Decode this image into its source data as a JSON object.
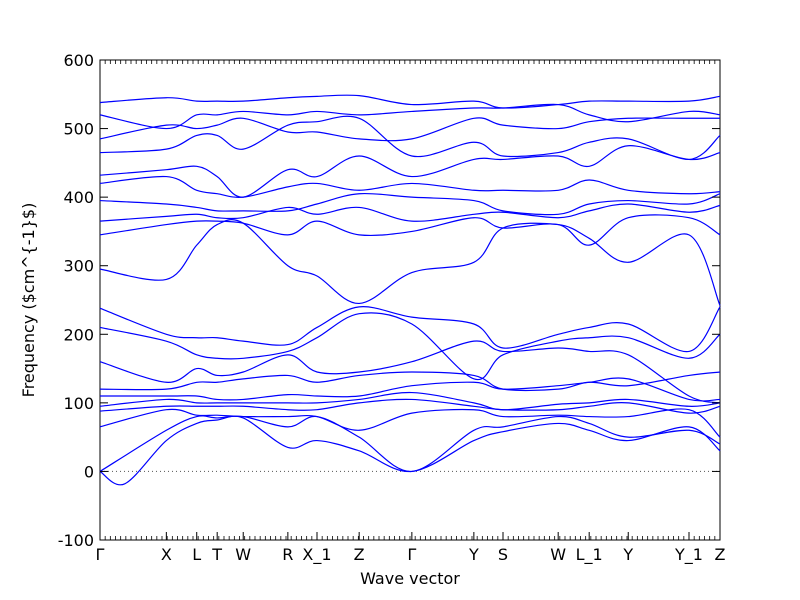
{
  "chart_data": {
    "type": "line",
    "title": "",
    "xlabel": "Wave vector",
    "ylabel": "Frequency ($cm^{-1}$)",
    "ylim": [
      -100,
      600
    ],
    "y_ticks": [
      -100,
      0,
      100,
      200,
      300,
      400,
      500,
      600
    ],
    "x_ticks": [
      {
        "label": "Γ",
        "x": 0.0
      },
      {
        "label": "X",
        "x": 0.107
      },
      {
        "label": "L",
        "x": 0.156
      },
      {
        "label": "T",
        "x": 0.189
      },
      {
        "label": "W",
        "x": 0.231
      },
      {
        "label": "R",
        "x": 0.303
      },
      {
        "label": "X_1",
        "x": 0.35
      },
      {
        "label": "Z",
        "x": 0.418
      },
      {
        "label": "Γ",
        "x": 0.503
      },
      {
        "label": "Y",
        "x": 0.603
      },
      {
        "label": "S",
        "x": 0.65
      },
      {
        "label": "W",
        "x": 0.739
      },
      {
        "label": "L_1",
        "x": 0.789
      },
      {
        "label": "Y",
        "x": 0.852
      },
      {
        "label": "Y_1",
        "x": 0.95
      },
      {
        "label": "Z",
        "x": 1.0
      }
    ],
    "series_color": "#0000ff",
    "zero_line": {
      "y": 0,
      "style": "dotted",
      "color": "#555555"
    },
    "series": [
      {
        "x": [
          0,
          0.04,
          0.107,
          0.156,
          0.189,
          0.231,
          0.303,
          0.35,
          0.418,
          0.503,
          0.603,
          0.65,
          0.739,
          0.789,
          0.852,
          0.95,
          1.0
        ],
        "values": [
          0,
          -18,
          45,
          70,
          75,
          78,
          35,
          45,
          30,
          0,
          45,
          58,
          70,
          60,
          45,
          65,
          30
        ]
      },
      {
        "x": [
          0,
          0.107,
          0.156,
          0.189,
          0.231,
          0.303,
          0.35,
          0.418,
          0.503,
          0.603,
          0.65,
          0.739,
          0.789,
          0.852,
          0.95,
          1.0
        ],
        "values": [
          0,
          60,
          80,
          78,
          80,
          65,
          80,
          50,
          0,
          60,
          65,
          80,
          70,
          50,
          60,
          40
        ]
      },
      {
        "x": [
          0,
          0.107,
          0.156,
          0.189,
          0.231,
          0.303,
          0.35,
          0.418,
          0.503,
          0.603,
          0.65,
          0.739,
          0.789,
          0.852,
          0.95,
          1.0
        ],
        "values": [
          65,
          90,
          82,
          82,
          80,
          80,
          80,
          60,
          85,
          90,
          80,
          82,
          80,
          80,
          90,
          50
        ]
      },
      {
        "x": [
          0,
          0.107,
          0.156,
          0.189,
          0.231,
          0.303,
          0.35,
          0.418,
          0.503,
          0.603,
          0.65,
          0.739,
          0.789,
          0.852,
          0.95,
          1.0
        ],
        "values": [
          88,
          95,
          95,
          95,
          95,
          90,
          90,
          100,
          105,
          95,
          90,
          90,
          95,
          100,
          85,
          95
        ]
      },
      {
        "x": [
          0,
          0.107,
          0.156,
          0.189,
          0.231,
          0.303,
          0.35,
          0.418,
          0.503,
          0.603,
          0.65,
          0.739,
          0.789,
          0.852,
          0.95,
          1.0
        ],
        "values": [
          95,
          105,
          100,
          100,
          100,
          100,
          100,
          105,
          115,
          100,
          90,
          98,
          100,
          105,
          95,
          100
        ]
      },
      {
        "x": [
          0,
          0.107,
          0.156,
          0.189,
          0.231,
          0.303,
          0.35,
          0.418,
          0.503,
          0.603,
          0.65,
          0.739,
          0.789,
          0.852,
          0.95,
          1.0
        ],
        "values": [
          110,
          110,
          110,
          105,
          105,
          112,
          110,
          110,
          125,
          130,
          120,
          125,
          130,
          135,
          105,
          105
        ]
      },
      {
        "x": [
          0,
          0.107,
          0.156,
          0.189,
          0.231,
          0.303,
          0.35,
          0.418,
          0.503,
          0.603,
          0.65,
          0.739,
          0.789,
          0.852,
          0.95,
          1.0
        ],
        "values": [
          120,
          120,
          130,
          130,
          135,
          140,
          130,
          140,
          145,
          140,
          120,
          120,
          130,
          125,
          140,
          145
        ]
      },
      {
        "x": [
          0,
          0.107,
          0.156,
          0.189,
          0.231,
          0.303,
          0.35,
          0.418,
          0.503,
          0.603,
          0.65,
          0.739,
          0.789,
          0.852,
          0.95,
          1.0
        ],
        "values": [
          160,
          130,
          150,
          140,
          145,
          170,
          145,
          145,
          160,
          190,
          175,
          180,
          175,
          170,
          110,
          100
        ]
      },
      {
        "x": [
          0,
          0.107,
          0.156,
          0.189,
          0.231,
          0.303,
          0.35,
          0.418,
          0.503,
          0.603,
          0.65,
          0.739,
          0.789,
          0.852,
          0.95,
          1.0
        ],
        "values": [
          210,
          190,
          170,
          165,
          165,
          175,
          195,
          230,
          215,
          135,
          170,
          190,
          195,
          195,
          165,
          200
        ]
      },
      {
        "x": [
          0,
          0.107,
          0.156,
          0.189,
          0.231,
          0.303,
          0.35,
          0.418,
          0.503,
          0.603,
          0.65,
          0.739,
          0.789,
          0.852,
          0.95,
          1.0
        ],
        "values": [
          238,
          200,
          195,
          195,
          190,
          185,
          210,
          240,
          225,
          215,
          180,
          200,
          210,
          215,
          175,
          240
        ]
      },
      {
        "x": [
          0,
          0.107,
          0.156,
          0.189,
          0.231,
          0.303,
          0.35,
          0.418,
          0.503,
          0.603,
          0.65,
          0.739,
          0.789,
          0.852,
          0.95,
          1.0
        ],
        "values": [
          295,
          280,
          330,
          360,
          362,
          300,
          285,
          245,
          290,
          305,
          355,
          360,
          340,
          305,
          345,
          242
        ]
      },
      {
        "x": [
          0,
          0.107,
          0.156,
          0.189,
          0.231,
          0.303,
          0.35,
          0.418,
          0.503,
          0.603,
          0.65,
          0.739,
          0.789,
          0.852,
          0.95,
          1.0
        ],
        "values": [
          345,
          360,
          365,
          365,
          362,
          345,
          365,
          345,
          350,
          370,
          355,
          360,
          330,
          370,
          370,
          345
        ]
      },
      {
        "x": [
          0,
          0.107,
          0.156,
          0.189,
          0.231,
          0.303,
          0.35,
          0.418,
          0.503,
          0.603,
          0.65,
          0.739,
          0.789,
          0.852,
          0.95,
          1.0
        ],
        "values": [
          365,
          372,
          375,
          370,
          370,
          385,
          375,
          385,
          365,
          375,
          378,
          370,
          380,
          390,
          378,
          388
        ]
      },
      {
        "x": [
          0,
          0.107,
          0.156,
          0.189,
          0.231,
          0.303,
          0.35,
          0.418,
          0.503,
          0.603,
          0.65,
          0.739,
          0.789,
          0.852,
          0.95,
          1.0
        ],
        "values": [
          395,
          390,
          385,
          380,
          380,
          380,
          390,
          405,
          400,
          395,
          380,
          375,
          390,
          395,
          390,
          405
        ]
      },
      {
        "x": [
          0,
          0.107,
          0.156,
          0.189,
          0.231,
          0.303,
          0.35,
          0.418,
          0.503,
          0.603,
          0.65,
          0.739,
          0.789,
          0.852,
          0.95,
          1.0
        ],
        "values": [
          420,
          430,
          410,
          405,
          400,
          415,
          420,
          410,
          420,
          410,
          410,
          410,
          425,
          410,
          405,
          408
        ]
      },
      {
        "x": [
          0,
          0.107,
          0.156,
          0.189,
          0.231,
          0.303,
          0.35,
          0.418,
          0.503,
          0.603,
          0.65,
          0.739,
          0.789,
          0.852,
          0.95,
          1.0
        ],
        "values": [
          432,
          440,
          445,
          430,
          400,
          440,
          430,
          460,
          430,
          455,
          455,
          460,
          445,
          475,
          455,
          465
        ]
      },
      {
        "x": [
          0,
          0.107,
          0.156,
          0.189,
          0.231,
          0.303,
          0.35,
          0.418,
          0.503,
          0.603,
          0.65,
          0.739,
          0.789,
          0.852,
          0.95,
          1.0
        ],
        "values": [
          465,
          470,
          490,
          490,
          470,
          505,
          510,
          515,
          460,
          480,
          460,
          465,
          480,
          485,
          455,
          490
        ]
      },
      {
        "x": [
          0,
          0.107,
          0.156,
          0.189,
          0.231,
          0.303,
          0.35,
          0.418,
          0.503,
          0.603,
          0.65,
          0.739,
          0.789,
          0.852,
          0.95,
          1.0
        ],
        "values": [
          485,
          505,
          500,
          505,
          515,
          495,
          495,
          485,
          485,
          515,
          505,
          500,
          510,
          515,
          515,
          515
        ]
      },
      {
        "x": [
          0,
          0.107,
          0.156,
          0.189,
          0.231,
          0.303,
          0.35,
          0.418,
          0.503,
          0.603,
          0.65,
          0.739,
          0.789,
          0.852,
          0.95,
          1.0
        ],
        "values": [
          520,
          500,
          520,
          520,
          525,
          520,
          525,
          520,
          525,
          530,
          530,
          535,
          520,
          510,
          525,
          520
        ]
      },
      {
        "x": [
          0,
          0.107,
          0.156,
          0.189,
          0.231,
          0.303,
          0.35,
          0.418,
          0.503,
          0.603,
          0.65,
          0.739,
          0.789,
          0.852,
          0.95,
          1.0
        ],
        "values": [
          538,
          545,
          540,
          540,
          540,
          545,
          547,
          548,
          535,
          540,
          530,
          535,
          540,
          540,
          540,
          547
        ]
      }
    ]
  }
}
